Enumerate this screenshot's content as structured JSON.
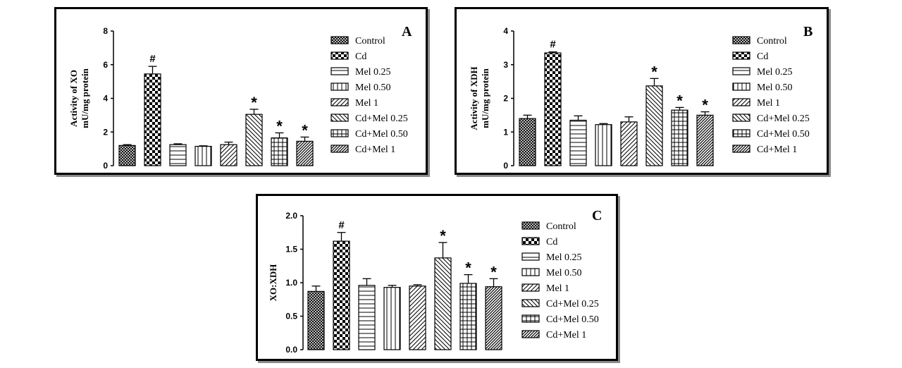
{
  "legend": [
    "Control",
    "Cd",
    "Mel 0.25",
    "Mel 0.50",
    "Mel 1",
    "Cd+Mel 0.25",
    "Cd+Mel 0.50",
    "Cd+Mel 1"
  ],
  "patterns": [
    "crosshatch-dense",
    "checker",
    "horizontal",
    "vertical",
    "diag-right",
    "diag-left",
    "grid",
    "diag-right-dense"
  ],
  "chart_data": [
    {
      "panel": "A",
      "type": "bar",
      "ylabel_line1": "Activity of XO",
      "ylabel_line2": "mU/mg protein",
      "ylim": [
        0,
        8
      ],
      "yticks": [
        "0",
        "2",
        "4",
        "6",
        "8"
      ],
      "ytick_values": [
        0,
        2,
        4,
        6,
        8
      ],
      "categories": [
        "Control",
        "Cd",
        "Mel 0.25",
        "Mel 0.50",
        "Mel 1",
        "Cd+Mel 0.25",
        "Cd+Mel 0.50",
        "Cd+Mel 1"
      ],
      "values": [
        1.2,
        5.45,
        1.25,
        1.15,
        1.25,
        3.05,
        1.65,
        1.45
      ],
      "errors": [
        0.05,
        0.45,
        0.05,
        0.03,
        0.15,
        0.3,
        0.3,
        0.25
      ],
      "markers": [
        "",
        "#",
        "",
        "",
        "",
        "*",
        "*",
        "*"
      ]
    },
    {
      "panel": "B",
      "type": "bar",
      "ylabel_line1": "Activity of XDH",
      "ylabel_line2": "mU/mg protein",
      "ylim": [
        0,
        4
      ],
      "yticks": [
        "0",
        "1",
        "2",
        "3",
        "4"
      ],
      "ytick_values": [
        0,
        1,
        2,
        3,
        4
      ],
      "categories": [
        "Control",
        "Cd",
        "Mel 0.25",
        "Mel 0.50",
        "Mel 1",
        "Cd+Mel 0.25",
        "Cd+Mel 0.50",
        "Cd+Mel 1"
      ],
      "values": [
        1.4,
        3.35,
        1.35,
        1.22,
        1.3,
        2.37,
        1.65,
        1.5
      ],
      "errors": [
        0.1,
        0.03,
        0.13,
        0.03,
        0.15,
        0.22,
        0.08,
        0.1
      ],
      "markers": [
        "",
        "#",
        "",
        "",
        "",
        "*",
        "*",
        "*"
      ]
    },
    {
      "panel": "C",
      "type": "bar",
      "ylabel_line1": "XO:XDH",
      "ylabel_line2": "",
      "ylim": [
        0,
        2.0
      ],
      "yticks": [
        "0.0",
        "0.5",
        "1.0",
        "1.5",
        "2.0"
      ],
      "ytick_values": [
        0,
        0.5,
        1.0,
        1.5,
        2.0
      ],
      "categories": [
        "Control",
        "Cd",
        "Mel 0.25",
        "Mel 0.50",
        "Mel 1",
        "Cd+Mel 0.25",
        "Cd+Mel 0.50",
        "Cd+Mel 1"
      ],
      "values": [
        0.87,
        1.62,
        0.96,
        0.93,
        0.95,
        1.37,
        0.99,
        0.94
      ],
      "errors": [
        0.08,
        0.13,
        0.1,
        0.03,
        0.02,
        0.23,
        0.13,
        0.12
      ],
      "markers": [
        "",
        "#",
        "",
        "",
        "",
        "*",
        "*",
        "*"
      ]
    }
  ]
}
